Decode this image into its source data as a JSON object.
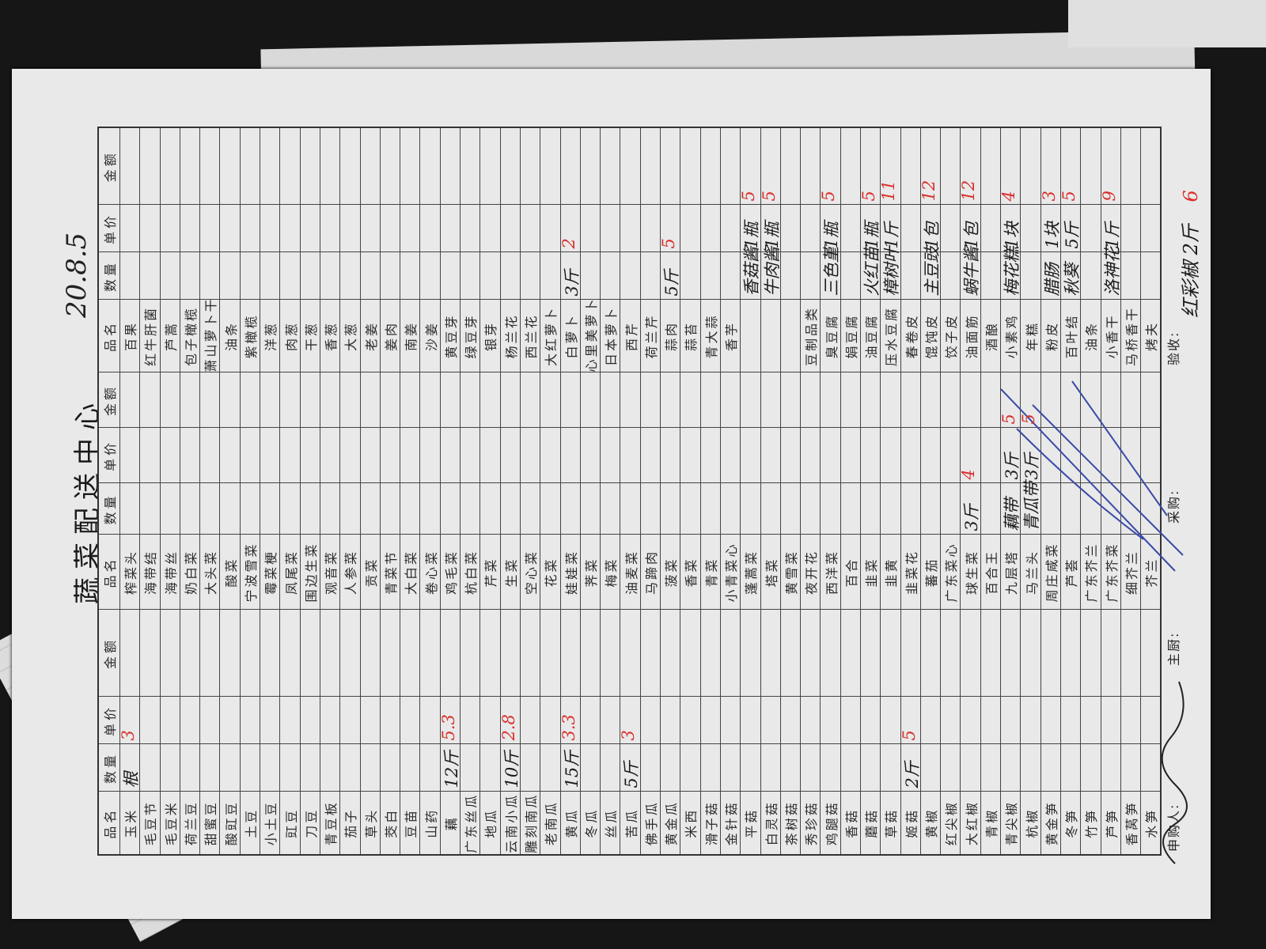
{
  "title": "蔬菜配送中心",
  "date": "20.8.5",
  "headers": [
    "品名",
    "数量",
    "单价",
    "金额"
  ],
  "sections": [
    {
      "rows": [
        [
          "玉米",
          "根",
          "3",
          ""
        ],
        [
          "毛豆节",
          "",
          "",
          ""
        ],
        [
          "毛豆米",
          "",
          "",
          ""
        ],
        [
          "荷兰豆",
          "",
          "",
          ""
        ],
        [
          "甜蜜豆",
          "",
          "",
          ""
        ],
        [
          "酸豇豆",
          "",
          "",
          ""
        ],
        [
          "土豆",
          "",
          "",
          ""
        ],
        [
          "小土豆",
          "",
          "",
          ""
        ],
        [
          "豇豆",
          "",
          "",
          ""
        ],
        [
          "刀豆",
          "",
          "",
          ""
        ],
        [
          "青豆板",
          "",
          "",
          ""
        ],
        [
          "茄子",
          "",
          "",
          ""
        ],
        [
          "草头",
          "",
          "",
          ""
        ],
        [
          "茭白",
          "",
          "",
          ""
        ],
        [
          "豆苗",
          "",
          "",
          ""
        ],
        [
          "山药",
          "",
          "",
          ""
        ],
        [
          "藕",
          "12斤",
          "5.3",
          ""
        ],
        [
          "广东丝瓜",
          "",
          "",
          ""
        ],
        [
          "地瓜",
          "",
          "",
          ""
        ],
        [
          "云南小瓜",
          "10斤",
          "2.8",
          ""
        ],
        [
          "雕刻南瓜",
          "",
          "",
          ""
        ],
        [
          "老南瓜",
          "",
          "",
          ""
        ],
        [
          "黄瓜",
          "15斤",
          "3.3",
          ""
        ],
        [
          "冬瓜",
          "",
          "",
          ""
        ],
        [
          "丝瓜",
          "",
          "",
          ""
        ],
        [
          "苦瓜",
          "5斤",
          "3",
          ""
        ],
        [
          "佛手瓜",
          "",
          "",
          ""
        ],
        [
          "黄金瓜",
          "",
          "",
          ""
        ],
        [
          "米西",
          "",
          "",
          ""
        ],
        [
          "滑子菇",
          "",
          "",
          ""
        ],
        [
          "金针菇",
          "",
          "",
          ""
        ],
        [
          "平菇",
          "",
          "",
          ""
        ],
        [
          "白灵菇",
          "",
          "",
          ""
        ],
        [
          "茶树菇",
          "",
          "",
          ""
        ],
        [
          "秀珍菇",
          "",
          "",
          ""
        ],
        [
          "鸡腿菇",
          "",
          "",
          ""
        ],
        [
          "香菇",
          "",
          "",
          ""
        ],
        [
          "蘑菇",
          "",
          "",
          ""
        ],
        [
          "草菇",
          "",
          "",
          ""
        ],
        [
          "姬菇",
          "2斤",
          "5",
          ""
        ],
        [
          "黄椒",
          "",
          "",
          ""
        ],
        [
          "红尖椒",
          "",
          "",
          ""
        ],
        [
          "大红椒",
          "",
          "",
          ""
        ],
        [
          "青椒",
          "",
          "",
          ""
        ],
        [
          "青尖椒",
          "",
          "",
          ""
        ],
        [
          "杭椒",
          "",
          "",
          ""
        ],
        [
          "黄金笋",
          "",
          "",
          ""
        ],
        [
          "冬笋",
          "",
          "",
          ""
        ],
        [
          "竹笋",
          "",
          "",
          ""
        ],
        [
          "芦笋",
          "",
          "",
          ""
        ],
        [
          "香莴笋",
          "",
          "",
          ""
        ],
        [
          "水笋",
          "",
          "",
          ""
        ]
      ]
    },
    {
      "rows": [
        [
          "榨菜头",
          "",
          "",
          ""
        ],
        [
          "海带结",
          "",
          "",
          ""
        ],
        [
          "海带丝",
          "",
          "",
          ""
        ],
        [
          "奶白菜",
          "",
          "",
          ""
        ],
        [
          "大头菜",
          "",
          "",
          ""
        ],
        [
          "酸菜",
          "",
          "",
          ""
        ],
        [
          "宁波雪菜",
          "",
          "",
          ""
        ],
        [
          "霉菜梗",
          "",
          "",
          ""
        ],
        [
          "凤尾菜",
          "",
          "",
          ""
        ],
        [
          "围边生菜",
          "",
          "",
          ""
        ],
        [
          "观音菜",
          "",
          "",
          ""
        ],
        [
          "人参菜",
          "",
          "",
          ""
        ],
        [
          "贡菜",
          "",
          "",
          ""
        ],
        [
          "青菜节",
          "",
          "",
          ""
        ],
        [
          "大白菜",
          "",
          "",
          ""
        ],
        [
          "卷心菜",
          "",
          "",
          ""
        ],
        [
          "鸡毛菜",
          "",
          "",
          ""
        ],
        [
          "杭白菜",
          "",
          "",
          ""
        ],
        [
          "芹菜",
          "",
          "",
          ""
        ],
        [
          "生菜",
          "",
          "",
          ""
        ],
        [
          "空心菜",
          "",
          "",
          ""
        ],
        [
          "花菜",
          "",
          "",
          ""
        ],
        [
          "娃娃菜",
          "",
          "",
          ""
        ],
        [
          "荠菜",
          "",
          "",
          ""
        ],
        [
          "梅菜",
          "",
          "",
          ""
        ],
        [
          "油麦菜",
          "",
          "",
          ""
        ],
        [
          "马蹄肉",
          "",
          "",
          ""
        ],
        [
          "菠菜",
          "",
          "",
          ""
        ],
        [
          "香菜",
          "",
          "",
          ""
        ],
        [
          "青菜",
          "",
          "",
          ""
        ],
        [
          "小青菜心",
          "",
          "",
          ""
        ],
        [
          "蓬蒿菜",
          "",
          "",
          ""
        ],
        [
          "塔菜",
          "",
          "",
          ""
        ],
        [
          "黄雪菜",
          "",
          "",
          ""
        ],
        [
          "夜开花",
          "",
          "",
          ""
        ],
        [
          "西洋菜",
          "",
          "",
          ""
        ],
        [
          "百合",
          "",
          "",
          ""
        ],
        [
          "韭菜",
          "",
          "",
          ""
        ],
        [
          "韭黄",
          "",
          "",
          ""
        ],
        [
          "韭菜花",
          "",
          "",
          ""
        ],
        [
          "蕃茄",
          "",
          "",
          ""
        ],
        [
          "广东菜心",
          "",
          "",
          ""
        ],
        [
          "球生菜",
          "3斤",
          "4",
          ""
        ],
        [
          "百合王",
          "",
          "",
          ""
        ],
        [
          "九层塔",
          "藕带",
          "3斤",
          "5"
        ],
        [
          "马兰头",
          "青瓜带",
          "3斤",
          "5"
        ],
        [
          "周庄咸菜",
          "",
          "",
          ""
        ],
        [
          "芦荟",
          "",
          "",
          ""
        ],
        [
          "广东芥兰",
          "",
          "",
          ""
        ],
        [
          "广东芥菜",
          "",
          "",
          ""
        ],
        [
          "细芥兰",
          "",
          "",
          ""
        ],
        [
          "芥兰",
          "",
          "",
          ""
        ]
      ]
    },
    {
      "rows": [
        [
          "百果",
          "",
          "",
          ""
        ],
        [
          "红牛肝菌",
          "",
          "",
          ""
        ],
        [
          "芦蒿",
          "",
          "",
          ""
        ],
        [
          "包子橄榄",
          "",
          "",
          ""
        ],
        [
          "萧山萝卜干",
          "",
          "",
          ""
        ],
        [
          "油条",
          "",
          "",
          ""
        ],
        [
          "紫橄榄",
          "",
          "",
          ""
        ],
        [
          "洋葱",
          "",
          "",
          ""
        ],
        [
          "肉葱",
          "",
          "",
          ""
        ],
        [
          "干葱",
          "",
          "",
          ""
        ],
        [
          "香葱",
          "",
          "",
          ""
        ],
        [
          "大葱",
          "",
          "",
          ""
        ],
        [
          "老姜",
          "",
          "",
          ""
        ],
        [
          "姜肉",
          "",
          "",
          ""
        ],
        [
          "南姜",
          "",
          "",
          ""
        ],
        [
          "沙姜",
          "",
          "",
          ""
        ],
        [
          "黄豆芽",
          "",
          "",
          ""
        ],
        [
          "绿豆芽",
          "",
          "",
          ""
        ],
        [
          "银芽",
          "",
          "",
          ""
        ],
        [
          "杨兰花",
          "",
          "",
          ""
        ],
        [
          "西兰花",
          "",
          "",
          ""
        ],
        [
          "大红萝卜",
          "",
          "",
          ""
        ],
        [
          "白萝卜",
          "3斤",
          "2",
          ""
        ],
        [
          "心里美萝卜",
          "",
          "",
          ""
        ],
        [
          "日本萝卜",
          "",
          "",
          ""
        ],
        [
          "西芹",
          "",
          "",
          ""
        ],
        [
          "荷兰芹",
          "",
          "",
          ""
        ],
        [
          "蒜肉",
          "5斤",
          "5",
          ""
        ],
        [
          "蒜苔",
          "",
          "",
          ""
        ],
        [
          "青大蒜",
          "",
          "",
          ""
        ],
        [
          "香芋",
          "",
          "",
          ""
        ],
        [
          "",
          "香菇酱",
          "1瓶",
          "5"
        ],
        [
          "",
          "牛肉酱",
          "1瓶",
          "5"
        ],
        [
          "",
          "",
          "",
          ""
        ],
        [
          "豆制品类",
          "",
          "",
          ""
        ],
        [
          "臭豆腐",
          "三色堇",
          "1瓶",
          "5"
        ],
        [
          "娟豆腐",
          "",
          "",
          ""
        ],
        [
          "油豆腐",
          "火红苗",
          "1瓶",
          "5"
        ],
        [
          "压水豆腐",
          "樟树叶",
          "1斤",
          "11"
        ],
        [
          "春卷皮",
          "",
          "",
          ""
        ],
        [
          "馄饨皮",
          "主豆豉",
          "1包",
          "12"
        ],
        [
          "饺子皮",
          "",
          "",
          ""
        ],
        [
          "油面筋",
          "蜗牛酱",
          "1包",
          "12"
        ],
        [
          "酒酿",
          "",
          "",
          ""
        ],
        [
          "小素鸡",
          "梅花糕",
          "1块",
          "4"
        ],
        [
          "年糕",
          "",
          "",
          ""
        ],
        [
          "粉皮",
          "腊肠",
          "1块",
          "3"
        ],
        [
          "百叶结",
          "秋葵",
          "5斤",
          "5"
        ],
        [
          "油条",
          "",
          "",
          ""
        ],
        [
          "小香干",
          "洛神花",
          "1斤",
          "9"
        ],
        [
          "马桥香干",
          "",
          "",
          ""
        ],
        [
          "烤夫",
          "",
          "",
          ""
        ]
      ]
    }
  ],
  "extra_line": {
    "name": "红彩椒",
    "qty": "2斤",
    "price": "6"
  },
  "footer": {
    "requester": "申购人:",
    "chef": "主厨:",
    "purchaser": "采购:",
    "inspector": "验收:"
  },
  "colors": {
    "paper": "#e9e9e9",
    "ink_red": "#d9302c",
    "ink_black": "#1b1b1b",
    "signature_blue": "#3a4aa8"
  }
}
